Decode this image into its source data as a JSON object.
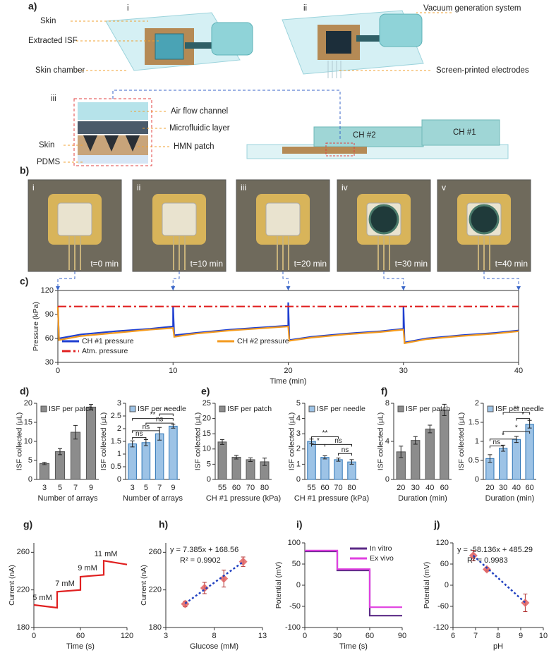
{
  "panels": {
    "a": "a)",
    "b": "b)",
    "c": "c)",
    "d": "d)",
    "e": "e)",
    "f": "f)",
    "g": "g)",
    "h": "h)",
    "i": "i)",
    "j": "j)"
  },
  "diagram": {
    "views": [
      "i",
      "ii",
      "iii"
    ],
    "skin": "Skin",
    "extracted_isf": "Extracted ISF",
    "skin_chamber": "Skin chamber",
    "vacuum": "Vacuum generation system",
    "electrodes": "Screen-printed electrodes",
    "air_flow": "Air flow channel",
    "microfluidic": "Microfluidic layer",
    "hmn": "HMN patch",
    "skin_layer": "Skin",
    "pdms": "PDMS",
    "ch2": "CH #2",
    "ch1": "CH #1"
  },
  "photos": [
    {
      "roman": "i",
      "time": "t=0 min"
    },
    {
      "roman": "ii",
      "time": "t=10 min"
    },
    {
      "roman": "iii",
      "time": "t=20 min"
    },
    {
      "roman": "iv",
      "time": "t=30 min"
    },
    {
      "roman": "v",
      "time": "t=40 min"
    }
  ],
  "chart_data": [
    {
      "type": "line",
      "xlabel": "Time (min)",
      "ylabel": "Pressure (kPa)",
      "xlim": [
        0,
        40
      ],
      "xticks": [
        0,
        10,
        20,
        30,
        40
      ],
      "ylim": [
        30,
        120
      ],
      "yticks": [
        30,
        60,
        90,
        120
      ],
      "frame": true,
      "legend": "lower left",
      "x": [
        0,
        0.1,
        2,
        5,
        8,
        10,
        10,
        10.1,
        12,
        15,
        18,
        20,
        20,
        20.1,
        22,
        25,
        28,
        30,
        30,
        30.1,
        32,
        35,
        38,
        40
      ],
      "series": [
        {
          "name": "CH #1 pressure",
          "color": "#1f3fd0",
          "values": [
            100,
            60,
            65,
            69,
            72,
            75,
            100,
            64,
            67,
            71,
            74,
            76,
            105,
            58,
            62,
            66,
            69,
            72,
            100,
            55,
            60,
            64,
            67,
            70
          ]
        },
        {
          "name": "CH #2 pressure",
          "color": "#f39a1e",
          "values": [
            100,
            58,
            63,
            67,
            71,
            73,
            73,
            62,
            66,
            70,
            73,
            75,
            75,
            57,
            61,
            65,
            68,
            71,
            71,
            54,
            59,
            63,
            66,
            69
          ]
        },
        {
          "name": "Atm. pressure",
          "color": "#e02020",
          "linestyle": "dashdot",
          "values": [
            100,
            100,
            100,
            100,
            100,
            100,
            100,
            100,
            100,
            100,
            100,
            100,
            100,
            100,
            100,
            100,
            100,
            100,
            100,
            100,
            100,
            100,
            100,
            100
          ]
        }
      ]
    },
    {
      "type": "bar",
      "categories": [
        "3",
        "5",
        "7",
        "9"
      ],
      "xlabel": "Number of arrays",
      "ylabel": "ISF collected (μL)",
      "ylim": [
        0,
        20
      ],
      "yticks": [
        0,
        5,
        10,
        15,
        20
      ],
      "legend": "upper left",
      "series": [
        {
          "name": "ISF per patch",
          "color": "#8c8c8c",
          "values": [
            4.2,
            7.3,
            12.4,
            19
          ],
          "errors": [
            0.3,
            0.8,
            1.8,
            0.7
          ]
        }
      ]
    },
    {
      "type": "bar",
      "categories": [
        "3",
        "5",
        "7",
        "9"
      ],
      "xlabel": "Number of arrays",
      "ylabel": "ISF collected (μL)",
      "ylim": [
        0,
        3
      ],
      "yticks": [
        0,
        0.5,
        1,
        1.5,
        2,
        2.5,
        3
      ],
      "legend": "upper left",
      "series": [
        {
          "name": "ISF per needle",
          "color": "#9dc3e6",
          "values": [
            1.4,
            1.45,
            1.8,
            2.1
          ],
          "errors": [
            0.12,
            0.12,
            0.25,
            0.08
          ]
        }
      ],
      "annotations": [
        "ns",
        "ns",
        "ns",
        "*",
        "**"
      ]
    },
    {
      "type": "bar",
      "categories": [
        "55",
        "60",
        "70",
        "80"
      ],
      "xlabel": "CH #1 pressure (kPa)",
      "ylabel": "ISF collected (μL)",
      "ylim": [
        0,
        25
      ],
      "yticks": [
        0,
        5,
        10,
        15,
        20,
        25
      ],
      "legend": "upper left",
      "series": [
        {
          "name": "ISF per patch",
          "color": "#8c8c8c",
          "values": [
            12.3,
            7.3,
            6.5,
            5.8
          ],
          "errors": [
            0.8,
            0.6,
            0.6,
            1.2
          ]
        }
      ]
    },
    {
      "type": "bar",
      "categories": [
        "55",
        "60",
        "70",
        "80"
      ],
      "xlabel": "CH #1 pressure (kPa)",
      "ylabel": "ISF collected (μL)",
      "ylim": [
        0,
        5
      ],
      "yticks": [
        0,
        1,
        2,
        3,
        4,
        5
      ],
      "legend": "upper left",
      "series": [
        {
          "name": "ISF per needle",
          "color": "#9dc3e6",
          "values": [
            2.5,
            1.45,
            1.3,
            1.15
          ],
          "errors": [
            0.15,
            0.1,
            0.1,
            0.15
          ]
        }
      ],
      "annotations": [
        "*",
        "**",
        "ns",
        "ns"
      ]
    },
    {
      "type": "bar",
      "categories": [
        "20",
        "30",
        "40",
        "60"
      ],
      "xlabel": "Duration (min)",
      "ylabel": "ISF collected (μL)",
      "ylim": [
        0,
        8
      ],
      "yticks": [
        0,
        4,
        8
      ],
      "legend": "upper left",
      "series": [
        {
          "name": "ISF per patch",
          "color": "#8c8c8c",
          "values": [
            2.9,
            4.1,
            5.3,
            7.3
          ],
          "errors": [
            0.6,
            0.4,
            0.4,
            0.6
          ]
        }
      ]
    },
    {
      "type": "bar",
      "categories": [
        "20",
        "30",
        "40",
        "60"
      ],
      "xlabel": "Duration (min)",
      "ylabel": "ISF collected (μL)",
      "ylim": [
        0,
        2
      ],
      "yticks": [
        0,
        0.5,
        1,
        1.5,
        2
      ],
      "legend": "upper left",
      "series": [
        {
          "name": "ISF per needle",
          "color": "#9dc3e6",
          "values": [
            0.55,
            0.82,
            1.05,
            1.45
          ],
          "errors": [
            0.1,
            0.08,
            0.08,
            0.1
          ]
        }
      ],
      "annotations": [
        "ns",
        "*",
        "*",
        "*",
        "**"
      ]
    },
    {
      "type": "line",
      "xlabel": "Time (s)",
      "ylabel": "Current (nA)",
      "xlim": [
        0,
        120
      ],
      "xticks": [
        0,
        60,
        120
      ],
      "ylim": [
        180,
        270
      ],
      "yticks": [
        180,
        220,
        260
      ],
      "x": [
        0,
        30,
        30,
        60,
        60,
        90,
        90,
        120
      ],
      "series": [
        {
          "color": "#e02020",
          "values": [
            204,
            201,
            218,
            220,
            234,
            236,
            251,
            247
          ]
        }
      ],
      "annotations": [
        "5 mM",
        "7 mM",
        "9 mM",
        "11 mM"
      ]
    },
    {
      "type": "scatter",
      "xlabel": "Glucose (mM)",
      "ylabel": "Current (nA)",
      "xlim": [
        3,
        13
      ],
      "xticks": [
        3,
        8,
        13
      ],
      "ylim": [
        180,
        270
      ],
      "yticks": [
        180,
        220,
        260
      ],
      "x": [
        5,
        7,
        9,
        11
      ],
      "series": [
        {
          "color": "#e06060",
          "values": [
            205,
            222,
            232,
            250
          ],
          "errors": [
            3,
            6,
            9,
            5
          ]
        }
      ],
      "fit": {
        "label": "y = 7.385x + 168.56",
        "slope": 7.385,
        "intercept": 168.56,
        "color": "#2040c0"
      },
      "r2": "R² = 0.9902"
    },
    {
      "type": "line",
      "xlabel": "Time (s)",
      "ylabel": "Potential (mV)",
      "xlim": [
        0,
        90
      ],
      "xticks": [
        0,
        30,
        60,
        90
      ],
      "ylim": [
        -100,
        100
      ],
      "yticks": [
        -100,
        -50,
        0,
        50,
        100
      ],
      "legend": "upper right",
      "x": [
        0,
        30,
        30,
        60,
        60,
        90
      ],
      "series": [
        {
          "name": "In vitro",
          "color": "#5b2a86",
          "values": [
            80,
            80,
            35,
            35,
            -72,
            -72
          ]
        },
        {
          "name": "Ex vivo",
          "color": "#e040e0",
          "values": [
            82,
            82,
            38,
            38,
            -52,
            -52
          ]
        }
      ]
    },
    {
      "type": "scatter",
      "xlabel": "pH",
      "ylabel": "Potential (mV)",
      "xlim": [
        6,
        10
      ],
      "xticks": [
        6,
        7,
        8,
        9,
        10
      ],
      "ylim": [
        -120,
        120
      ],
      "yticks": [
        -120,
        -60,
        0,
        60,
        120
      ],
      "x": [
        6.9,
        7.5,
        9.2
      ],
      "series": [
        {
          "color": "#e06060",
          "values": [
            84,
            45,
            -50
          ],
          "errors": [
            15,
            5,
            25
          ]
        }
      ],
      "fit": {
        "label": "y = -58.136x + 485.29",
        "slope": -58.136,
        "intercept": 485.29,
        "color": "#2040c0"
      },
      "r2": "R² = 0.9983"
    }
  ]
}
